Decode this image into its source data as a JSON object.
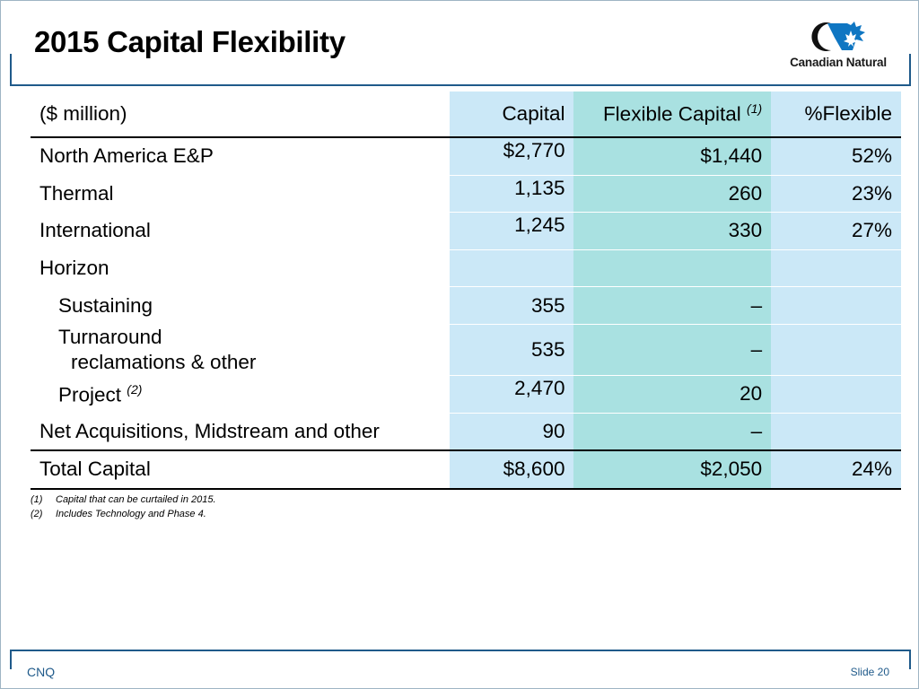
{
  "slide": {
    "title": "2015 Capital Flexibility",
    "logo_text": "Canadian Natural",
    "footer_left": "CNQ",
    "footer_right": "Slide 20"
  },
  "table": {
    "header": {
      "label": "($ million)",
      "capital": "Capital",
      "flexible": "Flexible Capital",
      "flexible_note": "(1)",
      "pct": "%Flexible"
    },
    "rows": [
      {
        "label": "North America E&P",
        "capital": "$2,770",
        "flexible": "$1,440",
        "pct": "52%"
      },
      {
        "label": "Thermal",
        "capital": "1,135",
        "flexible": "260",
        "pct": "23%"
      },
      {
        "label": "International",
        "capital": "1,245",
        "flexible": "330",
        "pct": "27%"
      },
      {
        "label": "Horizon",
        "capital": "",
        "flexible": "",
        "pct": ""
      },
      {
        "label": "Sustaining",
        "capital": "355",
        "flexible": "–",
        "pct": ""
      },
      {
        "label": "Turnaround",
        "label2": "reclamations & other",
        "capital": "535",
        "flexible": "–",
        "pct": ""
      },
      {
        "label": "Project",
        "note": "(2)",
        "capital": "2,470",
        "flexible": "20",
        "pct": ""
      },
      {
        "label": "Net Acquisitions, Midstream and other",
        "capital": "90",
        "flexible": "–",
        "pct": ""
      }
    ],
    "total": {
      "label": "Total Capital",
      "capital": "$8,600",
      "flexible": "$2,050",
      "pct": "24%"
    }
  },
  "footnotes": [
    {
      "num": "(1)",
      "text": "Capital that can be curtailed in 2015."
    },
    {
      "num": "(2)",
      "text": "Includes Technology and Phase 4."
    }
  ],
  "colors": {
    "capital_column": "#cbe8f7",
    "flexible_column": "#a9e1e1",
    "accent_blue": "#1f5a8a"
  }
}
